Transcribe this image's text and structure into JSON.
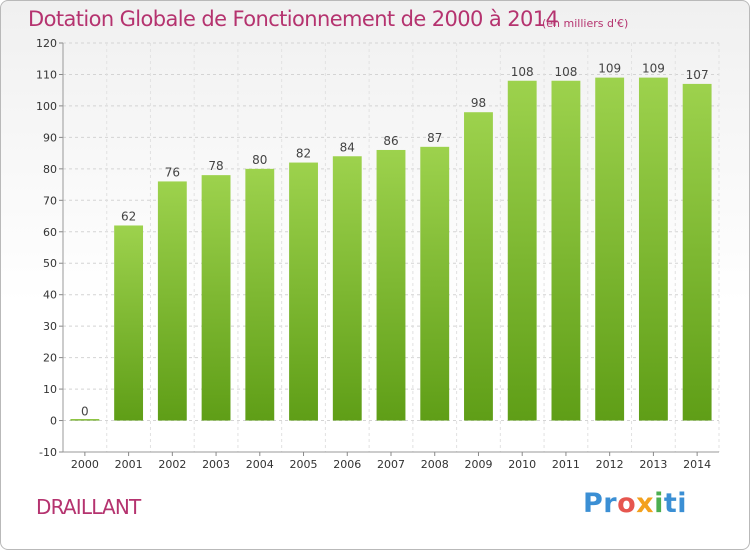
{
  "title": "Dotation Globale de Fonctionnement de 2000 à 2014",
  "unit_note": "(en milliers d'€)",
  "commune": "DRAILLANT",
  "logo": {
    "parts": [
      "Pr",
      "o",
      "x",
      "i",
      "ti"
    ],
    "icon": "proxiti-logo"
  },
  "colors": {
    "bar": "#7fc232",
    "bar_dark": "#65a41e",
    "title": "#b5336f",
    "grid": "#d6d6d6"
  },
  "chart_data": {
    "type": "bar",
    "categories": [
      "2000",
      "2001",
      "2002",
      "2003",
      "2004",
      "2005",
      "2006",
      "2007",
      "2008",
      "2009",
      "2010",
      "2011",
      "2012",
      "2013",
      "2014"
    ],
    "values": [
      0,
      62,
      76,
      78,
      80,
      82,
      84,
      86,
      87,
      98,
      108,
      108,
      109,
      109,
      107
    ],
    "value_labels": [
      "0",
      "62",
      "76",
      "78",
      "80",
      "82",
      "84",
      "86",
      "87",
      "98",
      "108",
      "108",
      "109",
      "109",
      "107"
    ],
    "y_ticks": [
      "-10",
      "0",
      "10",
      "20",
      "30",
      "40",
      "50",
      "60",
      "70",
      "80",
      "90",
      "100",
      "110",
      "120"
    ],
    "ylim": [
      -10,
      120
    ],
    "title": "Dotation Globale de Fonctionnement de 2000 à 2014",
    "xlabel": "",
    "ylabel": "",
    "grid": true,
    "legend": "none"
  }
}
